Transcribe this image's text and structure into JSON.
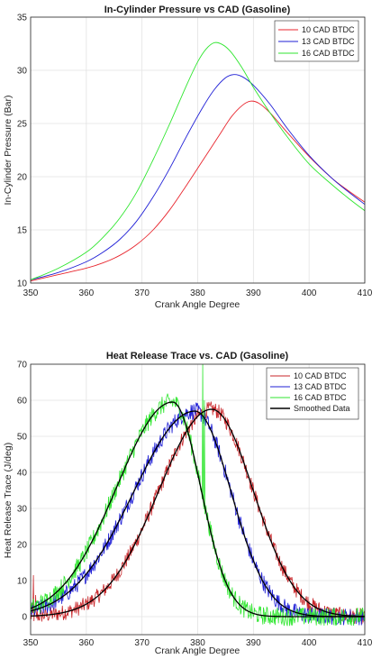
{
  "chart_data": [
    {
      "type": "line",
      "title": "In-Cylinder Pressure vs CAD (Gasoline)",
      "xlabel": "Crank Angle Degree",
      "ylabel": "In-Cylinder Pressure (Bar)",
      "xlim": [
        350,
        410
      ],
      "ylim": [
        10,
        35
      ],
      "xticks": [
        350,
        360,
        370,
        380,
        390,
        400,
        410
      ],
      "yticks": [
        10,
        15,
        20,
        25,
        30,
        35
      ],
      "grid": true,
      "legend_position": "top-right",
      "series": [
        {
          "name": "10 CAD BTDC",
          "color": "#e8262e",
          "x": [
            350,
            355,
            360,
            363,
            366,
            369,
            372,
            375,
            378,
            381,
            384,
            386,
            388,
            389.5,
            391,
            393,
            396,
            400,
            404,
            407,
            410
          ],
          "y": [
            10.2,
            10.8,
            11.4,
            11.9,
            12.6,
            13.6,
            15.0,
            16.9,
            19.2,
            21.6,
            24.0,
            25.6,
            26.7,
            27.1,
            26.9,
            26.0,
            24.2,
            21.9,
            19.9,
            18.7,
            17.6
          ]
        },
        {
          "name": "13 CAD BTDC",
          "color": "#1f1fd6",
          "x": [
            350,
            355,
            360,
            363,
            366,
            369,
            372,
            375,
            378,
            381,
            383,
            385,
            386.5,
            388,
            390,
            393,
            396,
            400,
            404,
            407,
            410
          ],
          "y": [
            10.3,
            11.0,
            12.0,
            12.9,
            14.1,
            15.8,
            18.1,
            20.8,
            23.8,
            26.6,
            28.2,
            29.3,
            29.6,
            29.4,
            28.6,
            26.8,
            24.6,
            22.0,
            19.9,
            18.6,
            17.4
          ]
        },
        {
          "name": "16 CAD BTDC",
          "color": "#2fe62f",
          "x": [
            350,
            355,
            360,
            363,
            366,
            369,
            372,
            375,
            378,
            380,
            381.5,
            383,
            384.5,
            386,
            388,
            390,
            393,
            396,
            400,
            404,
            407,
            410
          ],
          "y": [
            10.3,
            11.4,
            12.9,
            14.3,
            16.1,
            18.5,
            21.6,
            25.0,
            28.6,
            30.8,
            32.0,
            32.6,
            32.4,
            31.7,
            30.2,
            28.4,
            26.0,
            23.8,
            21.2,
            19.3,
            18.0,
            16.8
          ]
        }
      ]
    },
    {
      "type": "line",
      "title": "Heat Release Trace vs. CAD (Gasoline)",
      "xlabel": "Crank Angle Degree",
      "ylabel": "Heat Release Trace (J/deg)",
      "xlim": [
        350,
        410
      ],
      "ylim": [
        -5,
        70
      ],
      "xticks": [
        350,
        360,
        370,
        380,
        390,
        400,
        410
      ],
      "yticks": [
        0,
        10,
        20,
        30,
        40,
        50,
        60,
        70
      ],
      "grid": true,
      "legend_position": "top-right",
      "series": [
        {
          "name": "10 CAD BTDC",
          "color": "#c8262a",
          "peak_x": 382.5,
          "peak_y": 57.5,
          "width_left": 9.5,
          "width_right": 7.5,
          "noise": 2.2,
          "spikes": [
            [
              350.5,
              11.5
            ],
            [
              350.9,
              6.0
            ]
          ]
        },
        {
          "name": "13 CAD BTDC",
          "color": "#1f1fd6",
          "peak_x": 379.5,
          "peak_y": 57.0,
          "width_left": 11.0,
          "width_right": 6.5,
          "noise": 2.4,
          "spikes": []
        },
        {
          "name": "16 CAD BTDC",
          "color": "#2fe62f",
          "peak_x": 375.5,
          "peak_y": 59.5,
          "width_left": 10.0,
          "width_right": 5.0,
          "noise": 2.6,
          "spikes": [
            [
              380.9,
              70.0
            ],
            [
              381.2,
              60.0
            ]
          ]
        },
        {
          "name": "Smoothed Data",
          "color": "#000000",
          "smoothed": true
        }
      ]
    }
  ]
}
